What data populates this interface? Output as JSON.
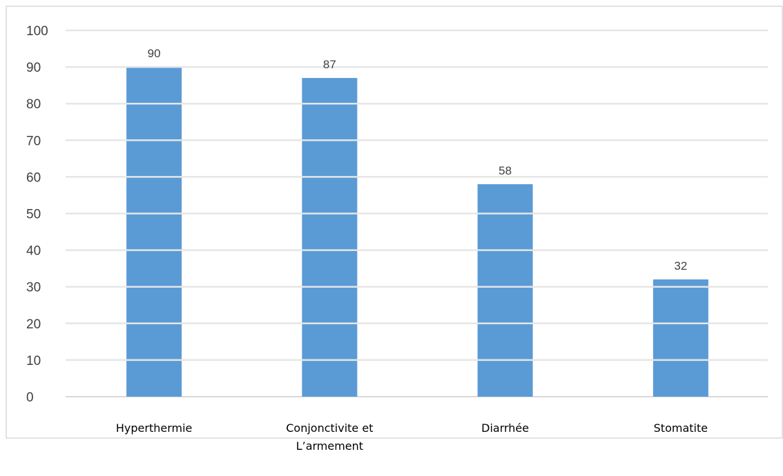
{
  "chart_data": {
    "type": "bar",
    "title": "",
    "xlabel": "",
    "ylabel": "",
    "categories": [
      [
        "Hyperthermie"
      ],
      [
        "Conjonctivite et",
        "L’armement"
      ],
      [
        "Diarrhée"
      ],
      [
        "Stomatite"
      ]
    ],
    "values": [
      90,
      87,
      58,
      32
    ],
    "data_labels": [
      "90",
      "87",
      "58",
      "32"
    ],
    "ylim": [
      0,
      100
    ],
    "y_ticks": [
      "0",
      "10",
      "20",
      "30",
      "40",
      "50",
      "60",
      "70",
      "80",
      "90",
      "100"
    ],
    "grid": true,
    "legend": "none",
    "bar_color": "#5b9bd5",
    "grid_color": "#d9d9d9"
  }
}
